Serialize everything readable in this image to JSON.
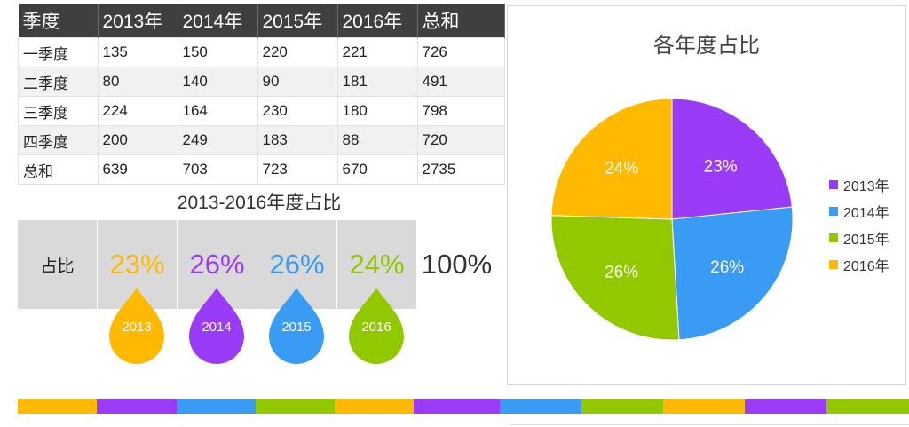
{
  "table": {
    "headers": [
      "季度",
      "2013年",
      "2014年",
      "2015年",
      "2016年",
      "总和"
    ],
    "rows": [
      [
        "一季度",
        "135",
        "150",
        "220",
        "221",
        "726"
      ],
      [
        "二季度",
        "80",
        "140",
        "90",
        "181",
        "491"
      ],
      [
        "三季度",
        "224",
        "164",
        "230",
        "180",
        "798"
      ],
      [
        "四季度",
        "200",
        "249",
        "183",
        "88",
        "720"
      ],
      [
        "总和",
        "639",
        "703",
        "723",
        "670",
        "2735"
      ]
    ]
  },
  "ratio": {
    "title": "2013-2016年度占比",
    "row_label": "占比",
    "values": [
      "23%",
      "26%",
      "26%",
      "24%",
      "100%"
    ],
    "colors": [
      "#ffb900",
      "#9a3cf7",
      "#3a9bf5",
      "#92c800",
      "#333333"
    ],
    "drops": [
      {
        "label": "2013",
        "color": "#ffb900"
      },
      {
        "label": "2014",
        "color": "#9a3cf7"
      },
      {
        "label": "2015",
        "color": "#3a9bf5"
      },
      {
        "label": "2016",
        "color": "#92c800"
      }
    ]
  },
  "stripe_colors": [
    "#ffb900",
    "#9a3cf7",
    "#3a9bf5",
    "#92c800",
    "#ffb900",
    "#9a3cf7",
    "#3a9bf5",
    "#92c800",
    "#ffb900",
    "#9a3cf7",
    "#92c800"
  ],
  "chart_data": {
    "type": "pie",
    "title": "各年度占比",
    "categories": [
      "2013年",
      "2014年",
      "2015年",
      "2016年"
    ],
    "values": [
      639,
      703,
      723,
      670
    ],
    "labels": [
      "23%",
      "26%",
      "26%",
      "24%"
    ],
    "colors": [
      "#9a3cf7",
      "#3a9bf5",
      "#92c800",
      "#ffb900"
    ],
    "legend_placement": "right"
  }
}
